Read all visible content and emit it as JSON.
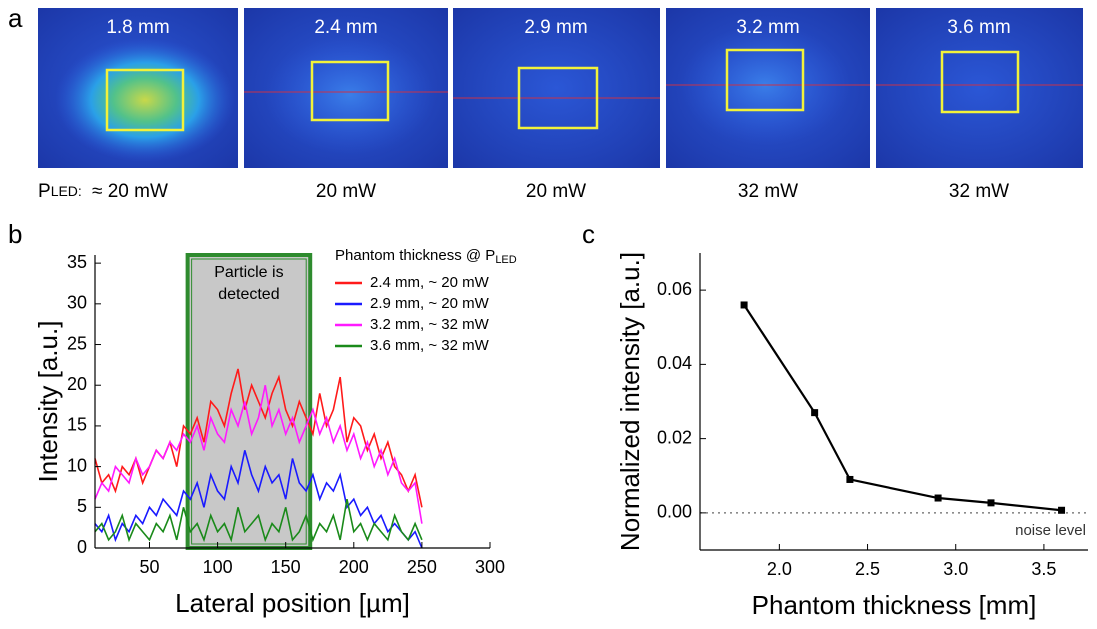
{
  "panel_labels": [
    "a",
    "b",
    "c"
  ],
  "panel_a": {
    "power_symbol": "P",
    "power_subscript": "LED:",
    "tiles": [
      {
        "thickness": "1.8 mm",
        "power": "≈ 20 mW"
      },
      {
        "thickness": "2.4 mm",
        "power": "20 mW"
      },
      {
        "thickness": "2.9 mm",
        "power": "20 mW"
      },
      {
        "thickness": "3.2 mm",
        "power": "32 mW"
      },
      {
        "thickness": "3.6 mm",
        "power": "32 mW"
      }
    ]
  },
  "chart_data": [
    {
      "type": "line",
      "x_label": "Lateral position [µm]",
      "y_label": "Intensity [a.u.]",
      "xlim": [
        10,
        300
      ],
      "ylim": [
        0,
        36
      ],
      "xticks": [
        50,
        100,
        150,
        200,
        250,
        300
      ],
      "yticks": [
        0,
        5,
        10,
        15,
        20,
        25,
        30,
        35
      ],
      "shaded_region": {
        "x": [
          78,
          168
        ],
        "label": [
          "Particle is",
          "detected"
        ],
        "color": "#c8c8c8",
        "edge_color": "#2e8b2e"
      },
      "legend_title": "Phantom thickness @ P",
      "legend_title_subscript": "LED",
      "x": [
        10,
        15,
        20,
        25,
        30,
        35,
        40,
        45,
        50,
        55,
        60,
        65,
        70,
        75,
        80,
        85,
        90,
        95,
        100,
        105,
        110,
        115,
        120,
        125,
        130,
        135,
        140,
        145,
        150,
        155,
        160,
        165,
        170,
        175,
        180,
        185,
        190,
        195,
        200,
        205,
        210,
        215,
        220,
        225,
        230,
        235,
        240,
        245,
        250
      ],
      "series": [
        {
          "name": "2.4 mm, ~ 20 mW",
          "color": "#ff1a1a",
          "values": [
            11,
            8,
            9,
            7,
            10,
            9,
            11,
            8,
            10,
            12,
            11,
            13,
            10,
            15,
            14,
            16,
            13,
            18,
            17,
            15,
            19,
            22,
            17,
            20,
            18,
            16,
            19,
            21,
            17,
            15,
            18,
            16,
            14,
            19,
            15,
            17,
            21,
            13,
            16,
            15,
            12,
            14,
            11,
            13,
            10,
            9,
            7,
            9,
            5
          ]
        },
        {
          "name": "2.9 mm, ~ 20 mW",
          "color": "#1a1aff",
          "values": [
            3,
            2,
            4,
            1,
            3,
            2,
            4,
            3,
            5,
            4,
            6,
            5,
            4,
            7,
            6,
            8,
            5,
            9,
            7,
            6,
            10,
            8,
            12,
            9,
            7,
            10,
            8,
            9,
            6,
            11,
            8,
            7,
            9,
            6,
            8,
            7,
            9,
            5,
            6,
            4,
            5,
            3,
            4,
            2,
            3,
            2,
            1,
            2,
            0
          ]
        },
        {
          "name": "3.2 mm, ~ 32 mW",
          "color": "#ff1aff",
          "values": [
            6,
            8,
            7,
            10,
            9,
            8,
            11,
            9,
            10,
            12,
            11,
            13,
            12,
            14,
            13,
            15,
            12,
            16,
            14,
            13,
            17,
            15,
            18,
            14,
            16,
            20,
            15,
            17,
            14,
            16,
            13,
            15,
            17,
            14,
            16,
            13,
            15,
            12,
            14,
            11,
            13,
            10,
            12,
            9,
            11,
            8,
            7,
            8,
            3
          ]
        },
        {
          "name": "3.6 mm, ~ 32 mW",
          "color": "#1a8a1a",
          "values": [
            2,
            3,
            1,
            2,
            4,
            1,
            3,
            2,
            1,
            3,
            2,
            4,
            1,
            5,
            2,
            3,
            1,
            4,
            2,
            3,
            1,
            5,
            2,
            3,
            4,
            1,
            3,
            2,
            5,
            1,
            2,
            4,
            1,
            3,
            2,
            4,
            1,
            6,
            2,
            3,
            1,
            3,
            2,
            1,
            4,
            2,
            1,
            3,
            1
          ]
        }
      ]
    },
    {
      "type": "line",
      "x_label": "Phantom thickness [mm]",
      "y_label": "Normalized intensity [a.u.]",
      "xlim": [
        1.55,
        3.75
      ],
      "ylim": [
        -0.01,
        0.07
      ],
      "xticks": [
        {
          "value": 2,
          "label": "2.0"
        },
        2.5,
        {
          "value": 3,
          "label": "3.0"
        },
        3.5
      ],
      "yticks": [
        {
          "value": 0,
          "label": "0.00"
        },
        {
          "value": 0.02,
          "label": "0.02"
        },
        {
          "value": 0.04,
          "label": "0.04"
        },
        {
          "value": 0.06,
          "label": "0.06"
        }
      ],
      "reference_line": {
        "value": 0,
        "label": "noise level"
      },
      "x": [
        1.8,
        2.2,
        2.4,
        2.9,
        3.2,
        3.6
      ],
      "series": [
        {
          "color": "#000000",
          "values": [
            0.056,
            0.027,
            0.009,
            0.004,
            0.0027,
            0.0007
          ]
        }
      ]
    }
  ]
}
